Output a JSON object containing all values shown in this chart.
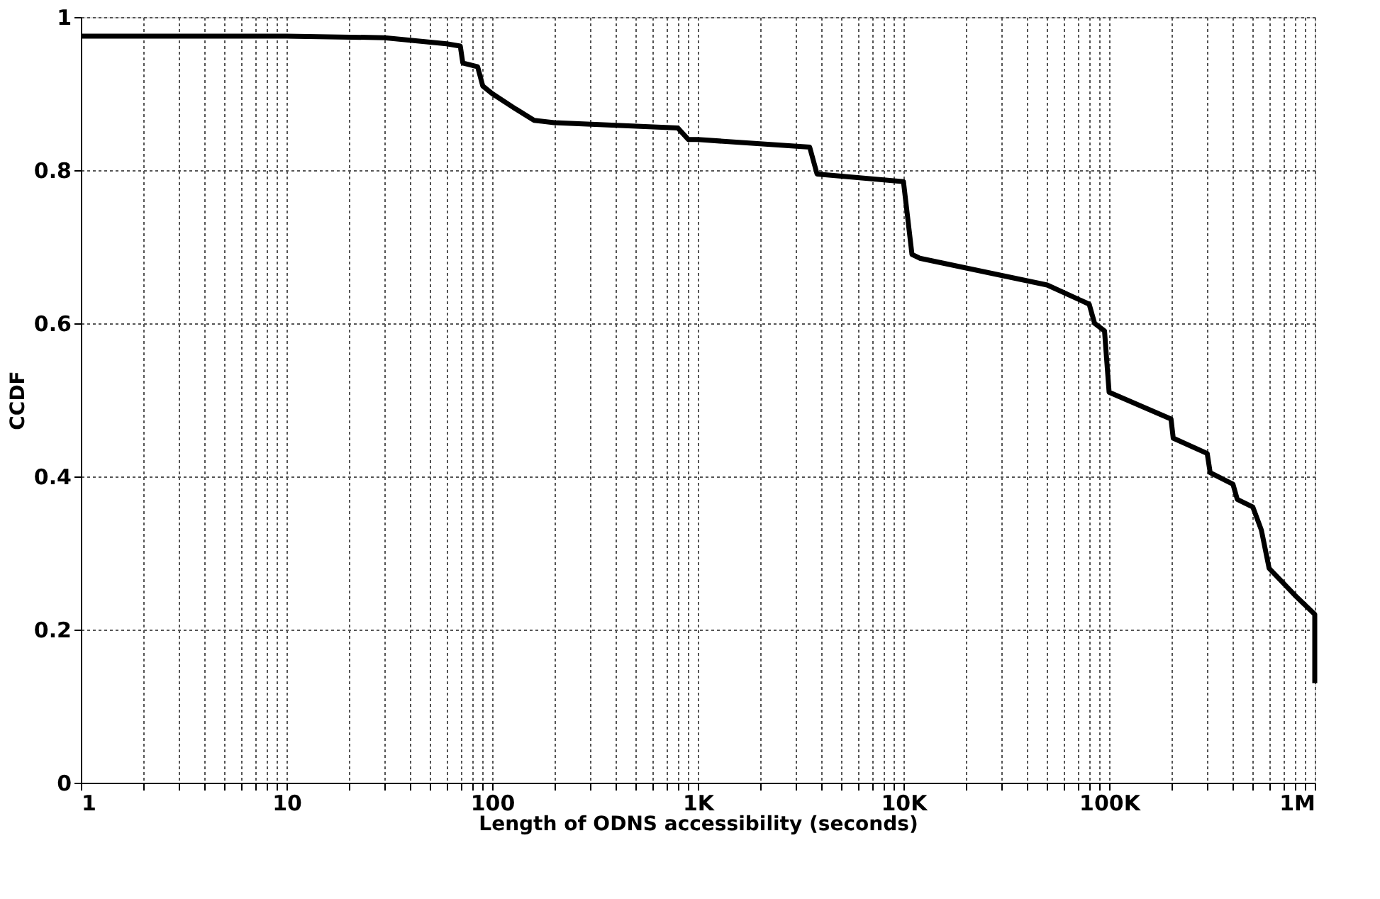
{
  "chart_data": {
    "type": "line",
    "xlabel": "Length of ODNS accessibility (seconds)",
    "ylabel": "CCDF",
    "log": "x",
    "grid": true,
    "line_style": "solid",
    "marker": "none",
    "xlim": [
      1,
      1000000
    ],
    "ylim": [
      0,
      1
    ],
    "xticks": [
      {
        "value": 1,
        "label": "1"
      },
      {
        "value": 2,
        "label": null
      },
      {
        "value": 3,
        "label": null
      },
      {
        "value": 4,
        "label": null
      },
      {
        "value": 5,
        "label": null
      },
      {
        "value": 6,
        "label": null
      },
      {
        "value": 7,
        "label": null
      },
      {
        "value": 8,
        "label": null
      },
      {
        "value": 9,
        "label": null
      },
      {
        "value": 10,
        "label": "10"
      },
      {
        "value": 20,
        "label": null
      },
      {
        "value": 30,
        "label": null
      },
      {
        "value": 40,
        "label": null
      },
      {
        "value": 50,
        "label": null
      },
      {
        "value": 60,
        "label": null
      },
      {
        "value": 70,
        "label": null
      },
      {
        "value": 80,
        "label": null
      },
      {
        "value": 90,
        "label": null
      },
      {
        "value": 100,
        "label": "100"
      },
      {
        "value": 200,
        "label": null
      },
      {
        "value": 300,
        "label": null
      },
      {
        "value": 400,
        "label": null
      },
      {
        "value": 500,
        "label": null
      },
      {
        "value": 600,
        "label": null
      },
      {
        "value": 700,
        "label": null
      },
      {
        "value": 800,
        "label": null
      },
      {
        "value": 900,
        "label": null
      },
      {
        "value": 1000,
        "label": "1K"
      },
      {
        "value": 2000,
        "label": null
      },
      {
        "value": 3000,
        "label": null
      },
      {
        "value": 4000,
        "label": null
      },
      {
        "value": 5000,
        "label": null
      },
      {
        "value": 6000,
        "label": null
      },
      {
        "value": 7000,
        "label": null
      },
      {
        "value": 8000,
        "label": null
      },
      {
        "value": 9000,
        "label": null
      },
      {
        "value": 10000,
        "label": "10K"
      },
      {
        "value": 20000,
        "label": null
      },
      {
        "value": 30000,
        "label": null
      },
      {
        "value": 40000,
        "label": null
      },
      {
        "value": 50000,
        "label": null
      },
      {
        "value": 60000,
        "label": null
      },
      {
        "value": 70000,
        "label": null
      },
      {
        "value": 80000,
        "label": null
      },
      {
        "value": 90000,
        "label": null
      },
      {
        "value": 100000,
        "label": "100K"
      },
      {
        "value": 200000,
        "label": null
      },
      {
        "value": 300000,
        "label": null
      },
      {
        "value": 400000,
        "label": null
      },
      {
        "value": 500000,
        "label": null
      },
      {
        "value": 600000,
        "label": null
      },
      {
        "value": 700000,
        "label": null
      },
      {
        "value": 800000,
        "label": null
      },
      {
        "value": 900000,
        "label": null
      },
      {
        "value": 1000000,
        "label": "1M"
      }
    ],
    "yticks": [
      0,
      0.2,
      0.4,
      0.6,
      0.8,
      1
    ],
    "series": [
      {
        "color": "#000000",
        "x": [
          1,
          10,
          30,
          60,
          70,
          72,
          85,
          90,
          100,
          130,
          160,
          200,
          800,
          900,
          1000,
          3500,
          3800,
          10000,
          11000,
          12000,
          50000,
          80000,
          85000,
          95000,
          100000,
          200000,
          205000,
          300000,
          310000,
          400000,
          420000,
          500000,
          550000,
          600000,
          800000,
          1000000,
          1000000
        ],
        "values": [
          0.975,
          0.975,
          0.973,
          0.965,
          0.962,
          0.94,
          0.935,
          0.91,
          0.9,
          0.88,
          0.865,
          0.862,
          0.855,
          0.84,
          0.84,
          0.83,
          0.795,
          0.785,
          0.69,
          0.685,
          0.65,
          0.625,
          0.6,
          0.59,
          0.51,
          0.475,
          0.45,
          0.43,
          0.405,
          0.39,
          0.37,
          0.36,
          0.33,
          0.28,
          0.245,
          0.22,
          0.13
        ]
      }
    ]
  }
}
